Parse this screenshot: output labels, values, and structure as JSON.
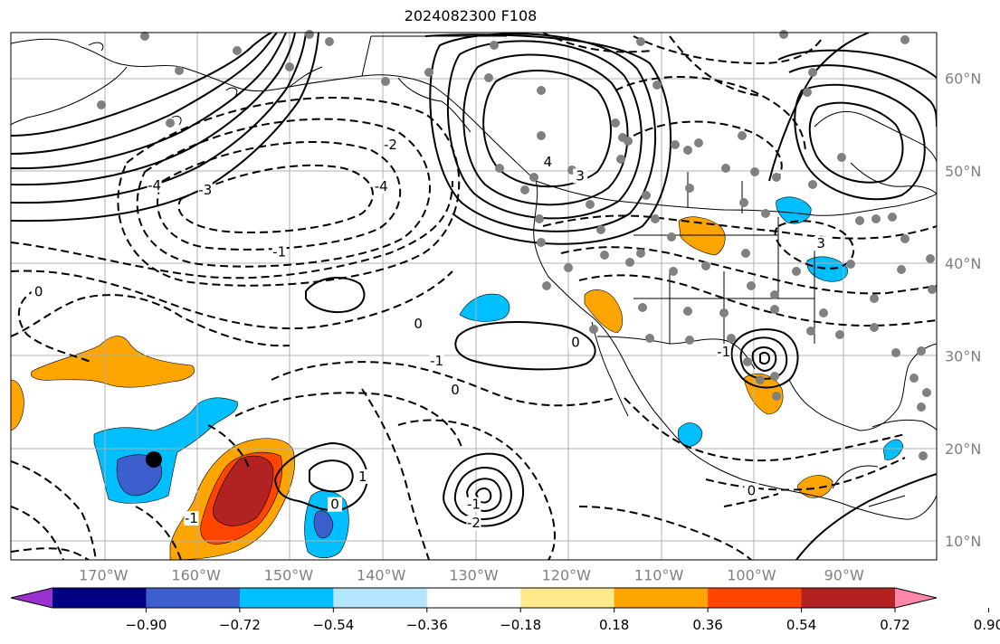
{
  "title": "2024082300 F108",
  "map": {
    "lon_ticks": [
      "170°W",
      "160°W",
      "150°W",
      "140°W",
      "130°W",
      "120°W",
      "110°W",
      "100°W",
      "90°W"
    ],
    "lon_values": [
      -170,
      -160,
      -150,
      -140,
      -130,
      -120,
      -110,
      -100,
      -90
    ],
    "lat_ticks": [
      "60°N",
      "50°N",
      "40°N",
      "30°N",
      "20°N",
      "10°N"
    ],
    "lat_values": [
      60,
      50,
      40,
      30,
      20,
      10
    ],
    "lon_range": [
      -180,
      -80
    ],
    "lat_range": [
      8,
      65
    ],
    "gridlines": true,
    "tick_color": "#808080"
  },
  "contour_labels": [
    {
      "text": "0",
      "lon": -136,
      "lat": 33.5
    },
    {
      "text": "0",
      "lon": -119,
      "lat": 31.5
    },
    {
      "text": "0",
      "lon": -132,
      "lat": 26.4
    },
    {
      "text": "-1",
      "lon": -134,
      "lat": 29.5
    },
    {
      "text": "1",
      "lon": -142,
      "lat": 17
    },
    {
      "text": "0",
      "lon": -145,
      "lat": 14
    },
    {
      "text": "-4",
      "lon": -140,
      "lat": 48.4
    },
    {
      "text": "-2",
      "lon": -139,
      "lat": 52.9
    },
    {
      "text": "-3",
      "lon": -159,
      "lat": 48
    },
    {
      "text": "-1",
      "lon": -151,
      "lat": 41.3
    },
    {
      "text": "0",
      "lon": -177,
      "lat": 37
    },
    {
      "text": "4",
      "lon": -122,
      "lat": 51
    },
    {
      "text": "3",
      "lon": -118.5,
      "lat": 49.5
    },
    {
      "text": "-4",
      "lon": -164.5,
      "lat": 48.5
    },
    {
      "text": "-1",
      "lon": -103,
      "lat": 30.5
    },
    {
      "text": "-1",
      "lon": -130,
      "lat": 14
    },
    {
      "text": "-2",
      "lon": -130,
      "lat": 12
    },
    {
      "text": "3",
      "lon": -92.5,
      "lat": 42.2
    },
    {
      "text": "0",
      "lon": -100,
      "lat": 15.5
    },
    {
      "text": "-1",
      "lon": -160.5,
      "lat": 12.5
    }
  ],
  "colorbar": {
    "ticks": [
      "−0.90",
      "−0.72",
      "−0.54",
      "−0.36",
      "−0.18",
      "0.18",
      "0.36",
      "0.54",
      "0.72",
      "0.90"
    ],
    "colors": [
      "#9b30d0",
      "#000080",
      "#3c5fcd",
      "#00bfff",
      "#b3e5fc",
      "#ffffff",
      "#ffe98a",
      "#ffa500",
      "#ff4500",
      "#b22222",
      "#ff88aa"
    ]
  }
}
